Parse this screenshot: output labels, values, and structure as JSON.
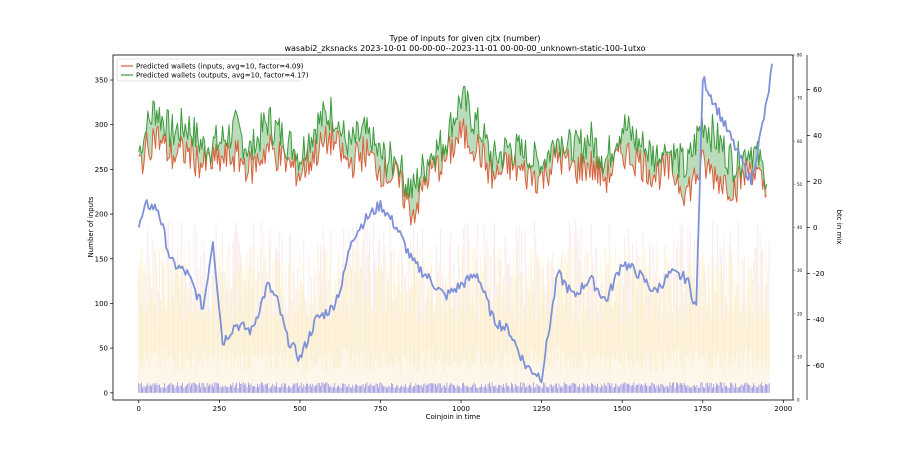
{
  "chart_data": {
    "type": "line",
    "title": "Type of inputs for given cjtx (number)",
    "subtitle": "wasabi2_zksnacks 2023-10-01 00-00-00--2023-11-01 00-00-00_unknown-static-100-1utxo",
    "xlabel": "Coinjoin in time",
    "ylabel": "Number of inputs",
    "ylabel_right": "btc in mix",
    "xlim": [
      -80,
      2030
    ],
    "ylim": [
      -8,
      378
    ],
    "ylim_right_small": [
      0,
      80
    ],
    "ylim_right": [
      -75,
      75
    ],
    "x_ticks": [
      0,
      250,
      500,
      750,
      1000,
      1250,
      1500,
      1750,
      2000
    ],
    "y_ticks": [
      0,
      50,
      100,
      150,
      200,
      250,
      300,
      350
    ],
    "y_ticks_right_small": [
      0,
      10,
      20,
      30,
      40,
      50,
      60,
      70,
      80
    ],
    "y_ticks_right": [
      -60,
      -40,
      -20,
      0,
      20,
      40,
      60
    ],
    "legend_position": "top-left",
    "grid": false,
    "series": [
      {
        "name": "Predicted wallets (inputs, avg=10, factor=4.09)",
        "color": "#d9603b",
        "axis": "left",
        "x": [
          0,
          50,
          100,
          150,
          200,
          250,
          300,
          350,
          400,
          450,
          500,
          550,
          600,
          650,
          700,
          750,
          800,
          850,
          900,
          950,
          1000,
          1050,
          1100,
          1150,
          1200,
          1250,
          1300,
          1350,
          1400,
          1450,
          1500,
          1550,
          1600,
          1650,
          1700,
          1750,
          1800,
          1850,
          1900,
          1950
        ],
        "values": [
          255,
          290,
          265,
          270,
          255,
          260,
          265,
          250,
          275,
          260,
          245,
          270,
          285,
          255,
          270,
          250,
          240,
          200,
          245,
          260,
          290,
          275,
          240,
          255,
          245,
          240,
          265,
          250,
          255,
          240,
          270,
          260,
          245,
          250,
          225,
          255,
          240,
          230,
          255,
          220
        ]
      },
      {
        "name": "Predicted wallets (outputs, avg=10, factor=4.17)",
        "color": "#3d9a3d",
        "axis": "left",
        "x": [
          0,
          50,
          100,
          150,
          200,
          250,
          300,
          350,
          400,
          450,
          500,
          550,
          600,
          650,
          700,
          750,
          800,
          850,
          900,
          950,
          1000,
          1050,
          1100,
          1150,
          1200,
          1250,
          1300,
          1350,
          1400,
          1450,
          1500,
          1550,
          1600,
          1650,
          1700,
          1750,
          1800,
          1850,
          1900,
          1950
        ],
        "values": [
          270,
          320,
          290,
          300,
          275,
          280,
          295,
          270,
          305,
          285,
          265,
          300,
          315,
          275,
          290,
          265,
          255,
          225,
          265,
          280,
          330,
          300,
          260,
          275,
          265,
          255,
          285,
          270,
          285,
          260,
          300,
          280,
          265,
          270,
          250,
          305,
          280,
          255,
          275,
          240
        ]
      },
      {
        "name": "",
        "color": "#7f92d8",
        "axis": "right",
        "x": [
          0,
          25,
          60,
          100,
          150,
          200,
          230,
          260,
          300,
          350,
          400,
          430,
          460,
          500,
          550,
          600,
          630,
          660,
          700,
          750,
          800,
          850,
          900,
          950,
          1000,
          1050,
          1100,
          1150,
          1200,
          1250,
          1300,
          1350,
          1400,
          1450,
          1500,
          1550,
          1600,
          1650,
          1700,
          1730,
          1750,
          1800,
          1850,
          1900,
          1950,
          1965
        ],
        "values": [
          0,
          10,
          8,
          -15,
          -20,
          -35,
          -5,
          -50,
          -42,
          -45,
          -25,
          -32,
          -48,
          -57,
          -40,
          -35,
          -25,
          -5,
          3,
          10,
          0,
          -15,
          -22,
          -30,
          -25,
          -20,
          -40,
          -45,
          -60,
          -65,
          -20,
          -30,
          -22,
          -32,
          -15,
          -20,
          -28,
          -20,
          -22,
          -35,
          65,
          50,
          35,
          20,
          55,
          70
        ]
      }
    ],
    "background_bars": [
      {
        "name": "",
        "color": "#f6d9d9",
        "upper": 195
      },
      {
        "name": "",
        "color": "#fdf0b0",
        "upper": 165
      },
      {
        "name": "",
        "color": "#ffffff",
        "upper": 50
      },
      {
        "name": "",
        "color": "#4a4ae0",
        "upper": 12
      }
    ]
  }
}
